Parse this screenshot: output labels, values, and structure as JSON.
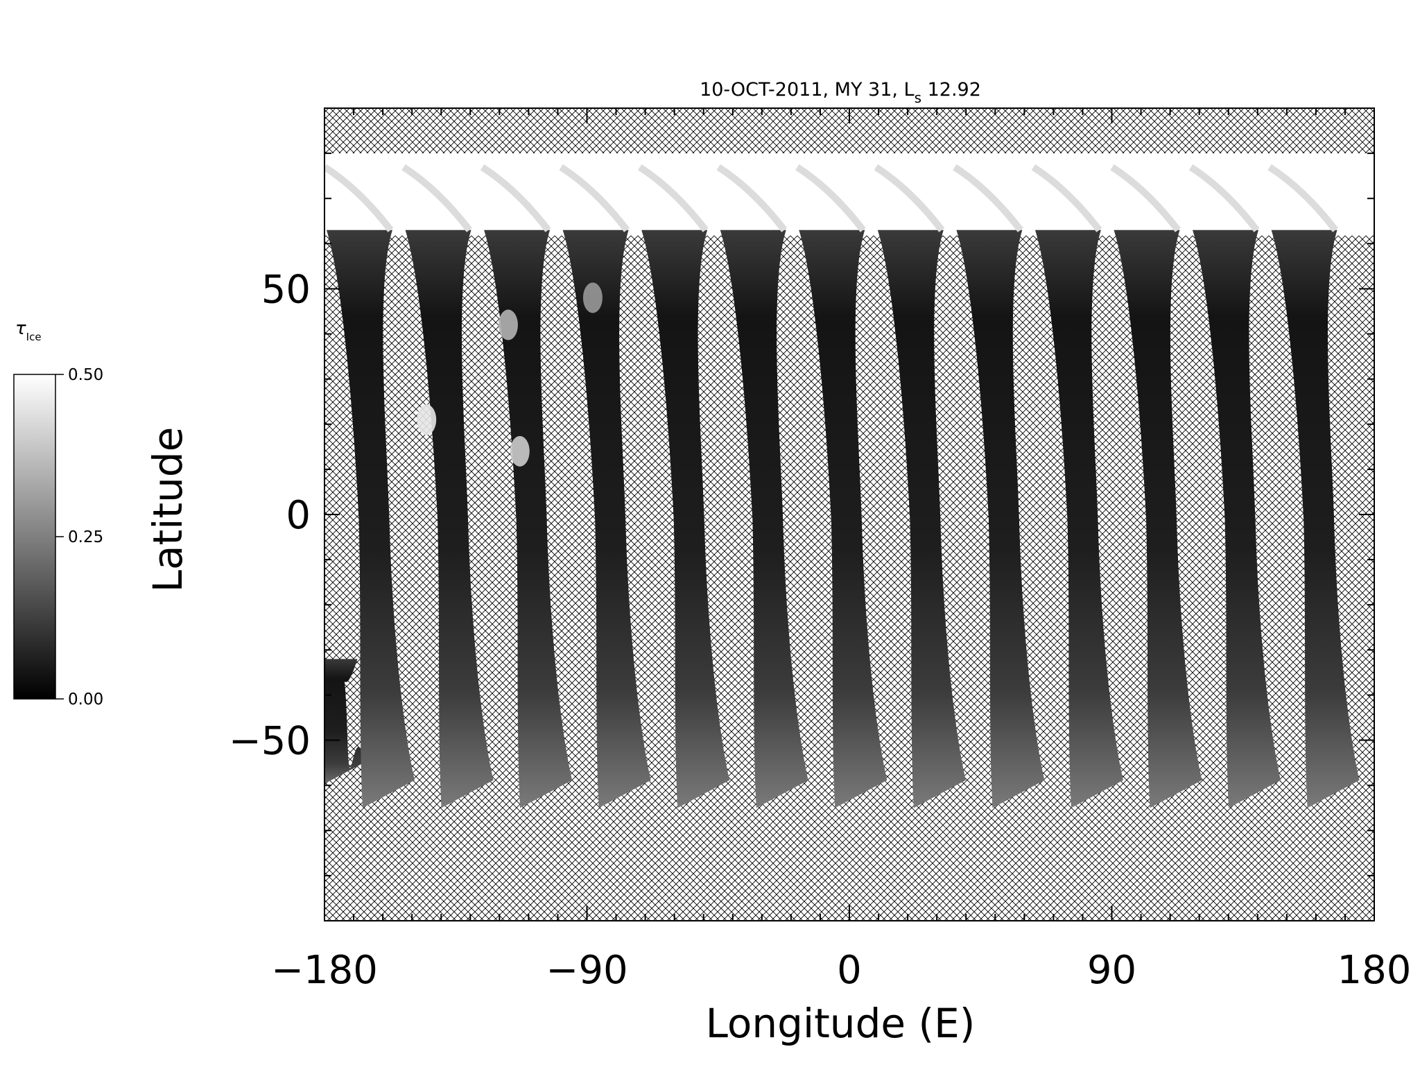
{
  "chart_data": {
    "type": "heatmap",
    "title": "10-OCT-2011, MY 31,  L",
    "title_subscript": "s",
    "title_value": " 12.92",
    "xlabel": "Longitude (E)",
    "ylabel": "Latitude",
    "xlim": [
      -180,
      180
    ],
    "ylim": [
      -90,
      90
    ],
    "x_ticks": [
      -180,
      -90,
      0,
      90,
      180
    ],
    "x_tick_labels": [
      "−180",
      "−90",
      "0",
      "90",
      "180"
    ],
    "y_ticks": [
      -50,
      0,
      50
    ],
    "y_tick_labels": [
      "−50",
      "0",
      "50"
    ],
    "no_data_pattern": "crosshatch",
    "colorbar": {
      "label": "τ",
      "label_subscript": "Ice",
      "ticks": [
        0.0,
        0.25,
        0.5
      ],
      "tick_labels": [
        "0.00",
        "0.25",
        "0.50"
      ],
      "min": 0.0,
      "max": 0.5,
      "colormap": "grayscale"
    },
    "polar_cap": {
      "lat_top": 80,
      "lat_bottom": 63,
      "value": 0.5
    },
    "swaths": [
      {
        "lon_top": -180,
        "lon_bottom": -175,
        "lat_top": -32,
        "lat_bottom": -61
      },
      {
        "lon_top": -168,
        "lon_bottom": -158,
        "lat_top": 63,
        "lat_bottom": -65
      },
      {
        "lon_top": -141,
        "lon_bottom": -131,
        "lat_top": 63,
        "lat_bottom": -65
      },
      {
        "lon_top": -114,
        "lon_bottom": -104,
        "lat_top": 63,
        "lat_bottom": -65
      },
      {
        "lon_top": -87,
        "lon_bottom": -77,
        "lat_top": 63,
        "lat_bottom": -65
      },
      {
        "lon_top": -60,
        "lon_bottom": -50,
        "lat_top": 63,
        "lat_bottom": -65
      },
      {
        "lon_top": -33,
        "lon_bottom": -23,
        "lat_top": 63,
        "lat_bottom": -65
      },
      {
        "lon_top": -6,
        "lon_bottom": 4,
        "lat_top": 63,
        "lat_bottom": -65
      },
      {
        "lon_top": 21,
        "lon_bottom": 31,
        "lat_top": 63,
        "lat_bottom": -65
      },
      {
        "lon_top": 48,
        "lon_bottom": 58,
        "lat_top": 63,
        "lat_bottom": -65
      },
      {
        "lon_top": 75,
        "lon_bottom": 85,
        "lat_top": 63,
        "lat_bottom": -65
      },
      {
        "lon_top": 102,
        "lon_bottom": 112,
        "lat_top": 63,
        "lat_bottom": -65
      },
      {
        "lon_top": 129,
        "lon_bottom": 139,
        "lat_top": 63,
        "lat_bottom": -65
      },
      {
        "lon_top": 156,
        "lon_bottom": 166,
        "lat_top": 63,
        "lat_bottom": -65
      }
    ],
    "bright_patches": [
      {
        "lon": -145,
        "lat": 21,
        "value": 0.45
      },
      {
        "lon": -113,
        "lat": 14,
        "value": 0.4
      },
      {
        "lon": -117,
        "lat": 42,
        "value": 0.35
      },
      {
        "lon": -88,
        "lat": 48,
        "value": 0.3
      }
    ],
    "colors": {
      "hatch": "#000000",
      "background": "#ffffff",
      "swath_dark": "#151515"
    }
  }
}
